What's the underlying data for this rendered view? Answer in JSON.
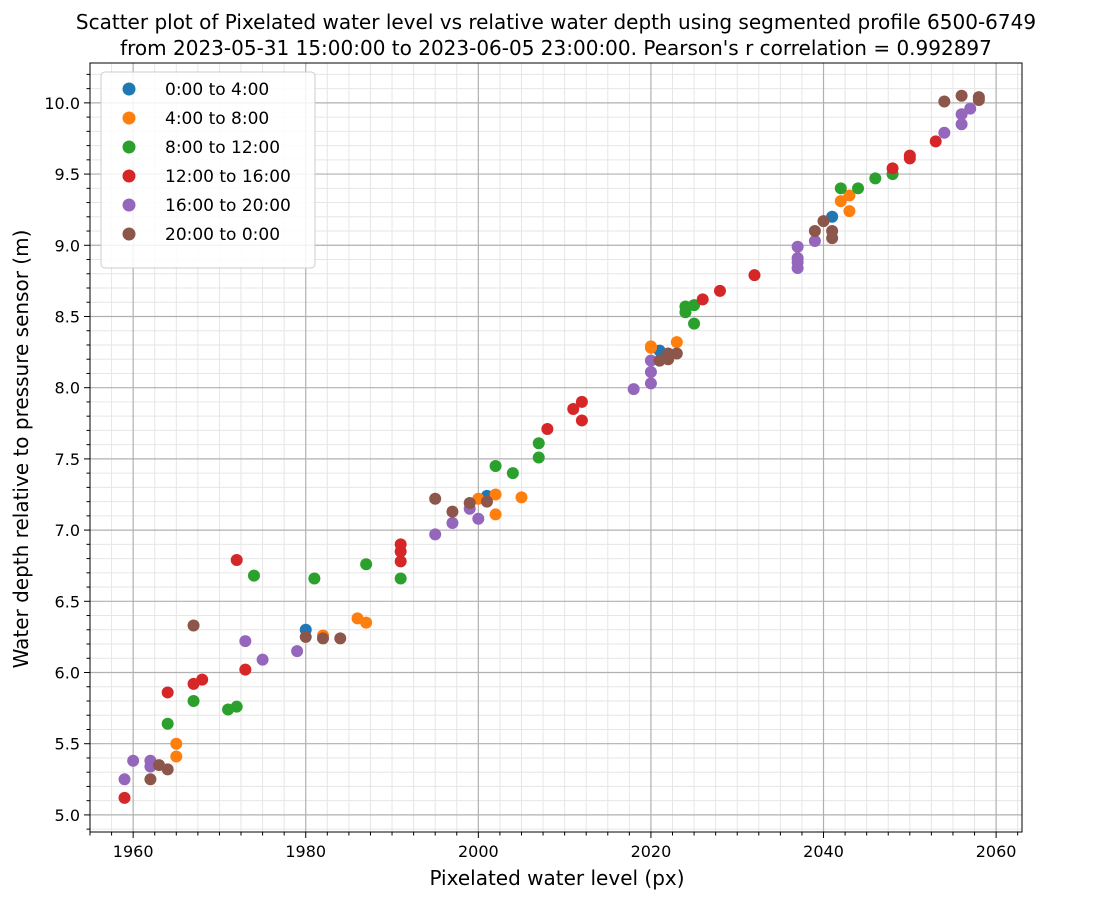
{
  "chart_data": {
    "type": "scatter",
    "title": "Scatter plot of Pixelated water level vs relative water depth using segmented profile 6500-6749",
    "subtitle": "from 2023-05-31 15:00:00 to 2023-06-05 23:00:00. Pearson's r correlation = 0.992897",
    "xlabel": "Pixelated water level (px)",
    "ylabel": "Water depth relative to pressure sensor (m)",
    "xlim": [
      1955,
      2063
    ],
    "ylim": [
      4.88,
      10.28
    ],
    "x_ticks": [
      "1960",
      "1980",
      "2000",
      "2020",
      "2040",
      "2060"
    ],
    "y_ticks": [
      "5.0",
      "5.5",
      "6.0",
      "6.5",
      "7.0",
      "7.5",
      "8.0",
      "8.5",
      "9.0",
      "9.5",
      "10.0"
    ],
    "grid": true,
    "minor_grid": true,
    "legend_position": "top-left",
    "series": [
      {
        "name": "0:00 to 4:00",
        "color": "#1f77b4",
        "points": [
          [
            1980,
            6.3
          ],
          [
            2001,
            7.24
          ],
          [
            2021,
            8.26
          ],
          [
            2041,
            9.2
          ]
        ]
      },
      {
        "name": "4:00 to 8:00",
        "color": "#ff7f0e",
        "points": [
          [
            1965,
            5.5
          ],
          [
            1965,
            5.41
          ],
          [
            1982,
            6.26
          ],
          [
            1986,
            6.38
          ],
          [
            1987,
            6.35
          ],
          [
            2000,
            7.22
          ],
          [
            2002,
            7.25
          ],
          [
            2002,
            7.11
          ],
          [
            2005,
            7.23
          ],
          [
            2020,
            8.29
          ],
          [
            2020,
            8.28
          ],
          [
            2023,
            8.32
          ],
          [
            2042,
            9.31
          ],
          [
            2043,
            9.35
          ],
          [
            2043,
            9.24
          ]
        ]
      },
      {
        "name": "8:00 to 12:00",
        "color": "#2ca02c",
        "points": [
          [
            1964,
            5.64
          ],
          [
            1967,
            5.8
          ],
          [
            1971,
            5.74
          ],
          [
            1972,
            5.76
          ],
          [
            1974,
            6.68
          ],
          [
            1981,
            6.66
          ],
          [
            1987,
            6.76
          ],
          [
            1991,
            6.66
          ],
          [
            2002,
            7.45
          ],
          [
            2004,
            7.4
          ],
          [
            2007,
            7.61
          ],
          [
            2007,
            7.51
          ],
          [
            2024,
            8.57
          ],
          [
            2024,
            8.53
          ],
          [
            2025,
            8.58
          ],
          [
            2025,
            8.45
          ],
          [
            2042,
            9.4
          ],
          [
            2044,
            9.4
          ],
          [
            2046,
            9.47
          ],
          [
            2048,
            9.5
          ]
        ]
      },
      {
        "name": "12:00 to 16:00",
        "color": "#d62728",
        "points": [
          [
            1959,
            5.12
          ],
          [
            1964,
            5.86
          ],
          [
            1967,
            5.92
          ],
          [
            1968,
            5.95
          ],
          [
            1972,
            6.79
          ],
          [
            1973,
            6.02
          ],
          [
            1991,
            6.9
          ],
          [
            1991,
            6.85
          ],
          [
            1991,
            6.78
          ],
          [
            2008,
            7.71
          ],
          [
            2011,
            7.85
          ],
          [
            2012,
            7.9
          ],
          [
            2012,
            7.77
          ],
          [
            2026,
            8.62
          ],
          [
            2028,
            8.68
          ],
          [
            2032,
            8.79
          ],
          [
            2048,
            9.54
          ],
          [
            2050,
            9.63
          ],
          [
            2050,
            9.61
          ],
          [
            2053,
            9.73
          ]
        ]
      },
      {
        "name": "16:00 to 20:00",
        "color": "#9467bd",
        "points": [
          [
            1959,
            5.25
          ],
          [
            1960,
            5.38
          ],
          [
            1962,
            5.38
          ],
          [
            1962,
            5.34
          ],
          [
            1973,
            6.22
          ],
          [
            1975,
            6.09
          ],
          [
            1979,
            6.15
          ],
          [
            1995,
            6.97
          ],
          [
            1997,
            7.05
          ],
          [
            1999,
            7.15
          ],
          [
            2000,
            7.08
          ],
          [
            2018,
            7.99
          ],
          [
            2020,
            8.19
          ],
          [
            2020,
            8.11
          ],
          [
            2020,
            8.03
          ],
          [
            2037,
            8.99
          ],
          [
            2037,
            8.91
          ],
          [
            2037,
            8.88
          ],
          [
            2037,
            8.84
          ],
          [
            2039,
            9.03
          ],
          [
            2054,
            9.79
          ],
          [
            2056,
            9.92
          ],
          [
            2056,
            9.85
          ],
          [
            2057,
            9.96
          ]
        ]
      },
      {
        "name": "20:00 to 0:00",
        "color": "#8c564b",
        "points": [
          [
            1962,
            5.25
          ],
          [
            1963,
            5.35
          ],
          [
            1964,
            5.32
          ],
          [
            1967,
            6.33
          ],
          [
            1980,
            6.25
          ],
          [
            1982,
            6.24
          ],
          [
            1984,
            6.24
          ],
          [
            1995,
            7.22
          ],
          [
            1997,
            7.13
          ],
          [
            1999,
            7.19
          ],
          [
            2001,
            7.2
          ],
          [
            2021,
            8.19
          ],
          [
            2022,
            8.24
          ],
          [
            2022,
            8.2
          ],
          [
            2023,
            8.24
          ],
          [
            2039,
            9.1
          ],
          [
            2040,
            9.17
          ],
          [
            2041,
            9.1
          ],
          [
            2041,
            9.05
          ],
          [
            2054,
            10.01
          ],
          [
            2056,
            10.05
          ],
          [
            2058,
            10.04
          ],
          [
            2058,
            10.02
          ]
        ]
      }
    ]
  }
}
